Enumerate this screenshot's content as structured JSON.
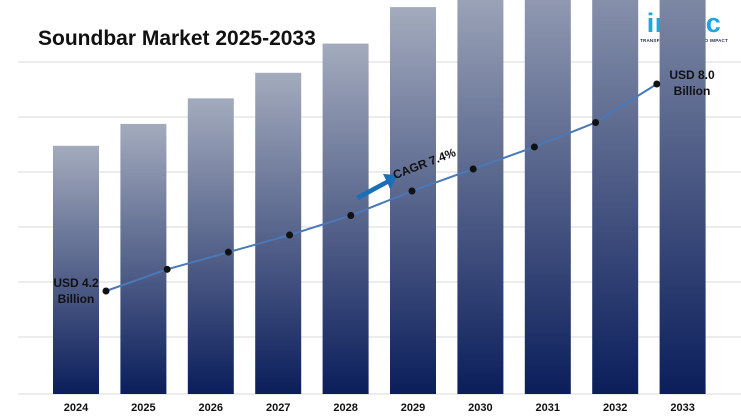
{
  "header": {
    "title": "Soundbar Market 2025-2033"
  },
  "logo": {
    "word": "imarc",
    "tagline": "TRANSFORMING IDEAS INTO IMPACT"
  },
  "annotations": {
    "first_value": "USD 4.2",
    "first_unit": "Billion",
    "last_value": "USD 8.0",
    "last_unit": "Billion",
    "cagr": "CAGR 7.4%"
  },
  "colors": {
    "bar_top": "#a3abbd",
    "bar_bottom": "#0b1e5b",
    "line": "#4a78b8",
    "marker": "#111111",
    "grid": "#d9d9d9",
    "cagr_arrow": "#1a6fb8",
    "logo": "#1ba7e4"
  },
  "chart_data": {
    "type": "bar",
    "title": "Soundbar Market 2025-2033",
    "categories": [
      "2024",
      "2025",
      "2026",
      "2027",
      "2028",
      "2029",
      "2030",
      "2031",
      "2032",
      "2033"
    ],
    "series": [
      {
        "values": [
          4.2,
          4.5,
          4.85,
          5.2,
          5.6,
          6.1,
          6.55,
          7.0,
          7.5,
          8.0
        ]
      }
    ],
    "trend_line": [
      4.2,
      4.5,
      4.85,
      5.2,
      5.6,
      6.1,
      6.55,
      7.0,
      7.5,
      8.0
    ],
    "xlabel": "",
    "ylabel": "",
    "y_axis_shown": false,
    "grid": true,
    "legend": "none"
  }
}
